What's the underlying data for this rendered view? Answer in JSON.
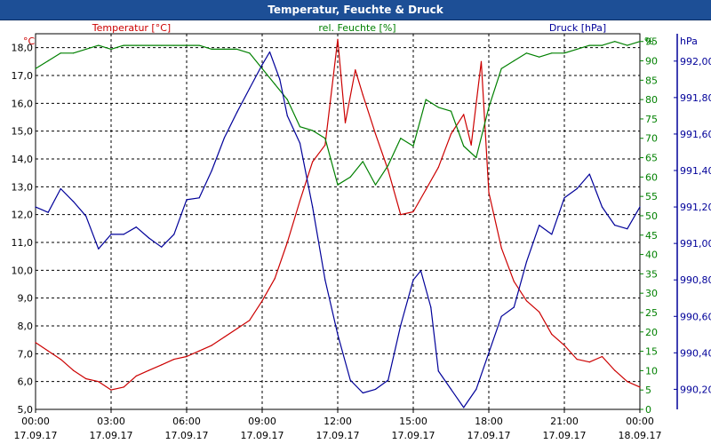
{
  "window": {
    "title": "Temperatur, Feuchte & Druck"
  },
  "colors": {
    "temperature": "#cc0000",
    "humidity": "#008000",
    "pressure": "#000099",
    "titlebar": "#1d4f96",
    "axis": "#000000",
    "grid": "#000000"
  },
  "chart_data": {
    "type": "line",
    "title": "Temperatur, Feuchte & Druck",
    "grid": true,
    "x_axis": {
      "range_hours": [
        0,
        24
      ],
      "ticks": [
        {
          "hours": 0,
          "time": "00:00",
          "date": "17.09.17"
        },
        {
          "hours": 3,
          "time": "03:00",
          "date": "17.09.17"
        },
        {
          "hours": 6,
          "time": "06:00",
          "date": "17.09.17"
        },
        {
          "hours": 9,
          "time": "09:00",
          "date": "17.09.17"
        },
        {
          "hours": 12,
          "time": "12:00",
          "date": "17.09.17"
        },
        {
          "hours": 15,
          "time": "15:00",
          "date": "17.09.17"
        },
        {
          "hours": 18,
          "time": "18:00",
          "date": "17.09.17"
        },
        {
          "hours": 21,
          "time": "21:00",
          "date": "17.09.17"
        },
        {
          "hours": 24,
          "time": "00:00",
          "date": "18.09.17"
        }
      ]
    },
    "axes": {
      "temperature": {
        "unit": "°C",
        "min": 5.0,
        "max": 18.5,
        "ticks": [
          "5,0",
          "6,0",
          "7,0",
          "8,0",
          "9,0",
          "10,0",
          "11,0",
          "12,0",
          "13,0",
          "14,0",
          "15,0",
          "16,0",
          "17,0",
          "18,0"
        ]
      },
      "humidity": {
        "unit": "%",
        "min": 0,
        "max": 97,
        "ticks": [
          "0",
          "5",
          "10",
          "15",
          "20",
          "25",
          "30",
          "35",
          "40",
          "45",
          "50",
          "55",
          "60",
          "65",
          "70",
          "75",
          "80",
          "85",
          "90",
          "95"
        ]
      },
      "pressure": {
        "unit": "hPa",
        "min": 990.09,
        "max": 992.15,
        "ticks": [
          "990,20",
          "990,40",
          "990,60",
          "990,80",
          "991,00",
          "991,20",
          "991,40",
          "991,60",
          "991,80",
          "992,00"
        ]
      }
    },
    "series": [
      {
        "name": "Temperatur [°C]",
        "axis": "temperature",
        "x": [
          0,
          0.5,
          1,
          1.5,
          2,
          2.5,
          3,
          3.5,
          4,
          4.5,
          5,
          5.5,
          6,
          6.5,
          7,
          7.5,
          8,
          8.5,
          9,
          9.5,
          10,
          10.5,
          11,
          11.5,
          12,
          12.3,
          12.7,
          13,
          13.5,
          14,
          14.5,
          15,
          15.5,
          16,
          16.5,
          17,
          17.3,
          17.7,
          18,
          18.5,
          19,
          19.5,
          20,
          20.5,
          21,
          21.5,
          22,
          22.5,
          23,
          23.5,
          24
        ],
        "values": [
          7.4,
          7.1,
          6.8,
          6.4,
          6.1,
          6.0,
          5.7,
          5.8,
          6.2,
          6.4,
          6.6,
          6.8,
          6.9,
          7.1,
          7.3,
          7.6,
          7.9,
          8.2,
          8.9,
          9.7,
          11.0,
          12.5,
          13.9,
          14.5,
          18.3,
          15.3,
          17.2,
          16.3,
          14.9,
          13.6,
          12.0,
          12.1,
          12.9,
          13.7,
          14.9,
          15.6,
          14.5,
          17.5,
          12.8,
          10.8,
          9.6,
          8.9,
          8.5,
          7.7,
          7.3,
          6.8,
          6.7,
          6.9,
          6.4,
          6.0,
          5.8
        ]
      },
      {
        "name": "rel. Feuchte [%]",
        "axis": "humidity",
        "x": [
          0,
          0.5,
          1,
          1.5,
          2,
          2.5,
          3,
          3.5,
          4,
          4.5,
          5,
          5.5,
          6,
          6.5,
          7,
          7.5,
          8,
          8.5,
          9,
          9.5,
          10,
          10.5,
          11,
          11.5,
          12,
          12.5,
          13,
          13.5,
          14,
          14.5,
          15,
          15.5,
          16,
          16.5,
          17,
          17.5,
          18,
          18.5,
          19,
          19.5,
          20,
          20.5,
          21,
          21.5,
          22,
          22.5,
          23,
          23.5,
          24
        ],
        "values": [
          88,
          90,
          92,
          92,
          93,
          94,
          93,
          94,
          94,
          94,
          94,
          94,
          94,
          94,
          93,
          93,
          93,
          92,
          88,
          84,
          80,
          73,
          72,
          70,
          58,
          60,
          64,
          58,
          63,
          70,
          68,
          80,
          78,
          77,
          68,
          65,
          78,
          88,
          90,
          92,
          91,
          92,
          92,
          93,
          94,
          94,
          95,
          94,
          95
        ]
      },
      {
        "name": "Druck [hPa]",
        "axis": "pressure",
        "x": [
          0,
          0.5,
          1,
          1.5,
          2,
          2.5,
          3,
          3.5,
          4,
          4.5,
          5,
          5.5,
          6,
          6.5,
          7,
          7.5,
          8,
          8.5,
          9,
          9.3,
          9.7,
          10,
          10.5,
          11,
          11.5,
          12,
          12.5,
          13,
          13.5,
          14,
          14.5,
          15,
          15.3,
          15.7,
          16,
          16.5,
          17,
          17.5,
          18,
          18.5,
          19,
          19.5,
          20,
          20.5,
          21,
          21.5,
          22,
          22.5,
          23,
          23.5,
          24
        ],
        "values": [
          991.2,
          991.17,
          991.3,
          991.23,
          991.15,
          990.97,
          991.05,
          991.05,
          991.09,
          991.03,
          990.98,
          991.05,
          991.24,
          991.25,
          991.4,
          991.58,
          991.72,
          991.85,
          991.98,
          992.05,
          991.9,
          991.7,
          991.55,
          991.2,
          990.8,
          990.5,
          990.25,
          990.18,
          990.2,
          990.25,
          990.55,
          990.8,
          990.85,
          990.65,
          990.3,
          990.2,
          990.1,
          990.2,
          990.4,
          990.6,
          990.65,
          990.9,
          991.1,
          991.05,
          991.25,
          991.3,
          991.38,
          991.2,
          991.1,
          991.08,
          991.2
        ]
      }
    ]
  }
}
